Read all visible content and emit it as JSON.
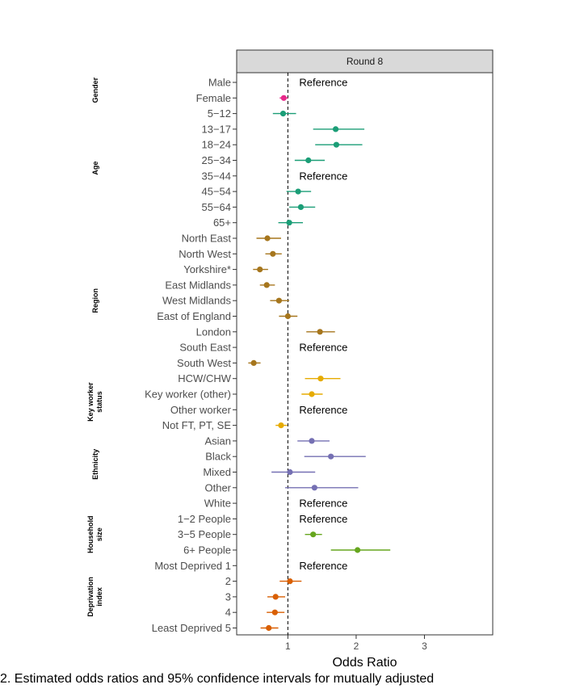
{
  "chart_data": {
    "type": "forest",
    "facet_title": "Round 8",
    "xlabel": "Odds Ratio",
    "x_ticks": [
      1,
      2,
      3
    ],
    "xlim": [
      0.25,
      4.0
    ],
    "reference_line": 1,
    "reference_text": "Reference",
    "groups": [
      {
        "label": "Gender",
        "color": "#e7298a",
        "rows": [
          {
            "label": "Male",
            "ref": true
          },
          {
            "label": "Female",
            "or": 0.94,
            "lo": 0.88,
            "hi": 1.0
          }
        ]
      },
      {
        "label": "Age",
        "color": "#1b9e77",
        "rows": [
          {
            "label": "5−12",
            "or": 0.93,
            "lo": 0.78,
            "hi": 1.12
          },
          {
            "label": "13−17",
            "or": 1.7,
            "lo": 1.37,
            "hi": 2.12
          },
          {
            "label": "18−24",
            "or": 1.71,
            "lo": 1.4,
            "hi": 2.09
          },
          {
            "label": "25−34",
            "or": 1.3,
            "lo": 1.1,
            "hi": 1.54
          },
          {
            "label": "35−44",
            "ref": true
          },
          {
            "label": "45−54",
            "or": 1.15,
            "lo": 0.98,
            "hi": 1.34
          },
          {
            "label": "55−64",
            "or": 1.19,
            "lo": 1.02,
            "hi": 1.4
          },
          {
            "label": "65+",
            "or": 1.02,
            "lo": 0.86,
            "hi": 1.22
          }
        ]
      },
      {
        "label": "Region",
        "color": "#a6761d",
        "rows": [
          {
            "label": "North East",
            "or": 0.7,
            "lo": 0.54,
            "hi": 0.9
          },
          {
            "label": "North West",
            "or": 0.78,
            "lo": 0.67,
            "hi": 0.91
          },
          {
            "label": "Yorkshire*",
            "or": 0.59,
            "lo": 0.49,
            "hi": 0.71
          },
          {
            "label": "East Midlands",
            "or": 0.69,
            "lo": 0.59,
            "hi": 0.81
          },
          {
            "label": "West Midlands",
            "or": 0.87,
            "lo": 0.74,
            "hi": 1.02
          },
          {
            "label": "East of England",
            "or": 1.0,
            "lo": 0.87,
            "hi": 1.14
          },
          {
            "label": "London",
            "or": 1.47,
            "lo": 1.27,
            "hi": 1.69
          },
          {
            "label": "South East",
            "ref": true
          },
          {
            "label": "South West",
            "or": 0.5,
            "lo": 0.42,
            "hi": 0.6
          }
        ]
      },
      {
        "label": "Key worker status",
        "color": "#e6ab02",
        "rows": [
          {
            "label": "HCW/CHW",
            "or": 1.48,
            "lo": 1.25,
            "hi": 1.77
          },
          {
            "label": "Key worker (other)",
            "or": 1.35,
            "lo": 1.2,
            "hi": 1.51
          },
          {
            "label": "Other worker",
            "ref": true
          },
          {
            "label": "Not FT, PT, SE",
            "or": 0.9,
            "lo": 0.82,
            "hi": 0.99
          }
        ]
      },
      {
        "label": "Ethnicity",
        "color": "#7570b3",
        "rows": [
          {
            "label": "Asian",
            "or": 1.35,
            "lo": 1.14,
            "hi": 1.61
          },
          {
            "label": "Black",
            "or": 1.63,
            "lo": 1.24,
            "hi": 2.14
          },
          {
            "label": "Mixed",
            "or": 1.03,
            "lo": 0.76,
            "hi": 1.4
          },
          {
            "label": "Other",
            "or": 1.39,
            "lo": 0.96,
            "hi": 2.03
          }
        ]
      },
      {
        "label": "White",
        "color": "#7570b3",
        "hide_group": true,
        "rows": [
          {
            "label": "White",
            "ref": true
          }
        ]
      },
      {
        "label": "Household size",
        "color": "#66a61e",
        "rows": [
          {
            "label": "1−2 People",
            "ref": true
          },
          {
            "label": "3−5 People",
            "or": 1.37,
            "lo": 1.25,
            "hi": 1.5
          },
          {
            "label": "6+ People",
            "or": 2.02,
            "lo": 1.63,
            "hi": 2.5
          }
        ]
      },
      {
        "label": "Deprivation index",
        "color": "#d95f02",
        "rows": [
          {
            "label": "Most Deprived 1",
            "ref": true
          },
          {
            "label": "2",
            "or": 1.03,
            "lo": 0.88,
            "hi": 1.2
          },
          {
            "label": "3",
            "or": 0.82,
            "lo": 0.7,
            "hi": 0.96
          },
          {
            "label": "4",
            "or": 0.81,
            "lo": 0.69,
            "hi": 0.95
          },
          {
            "label": "Least Deprived 5",
            "or": 0.72,
            "lo": 0.6,
            "hi": 0.86
          }
        ]
      }
    ]
  },
  "caption": "2. Estimated odds ratios and 95% confidence intervals for mutually adjusted"
}
